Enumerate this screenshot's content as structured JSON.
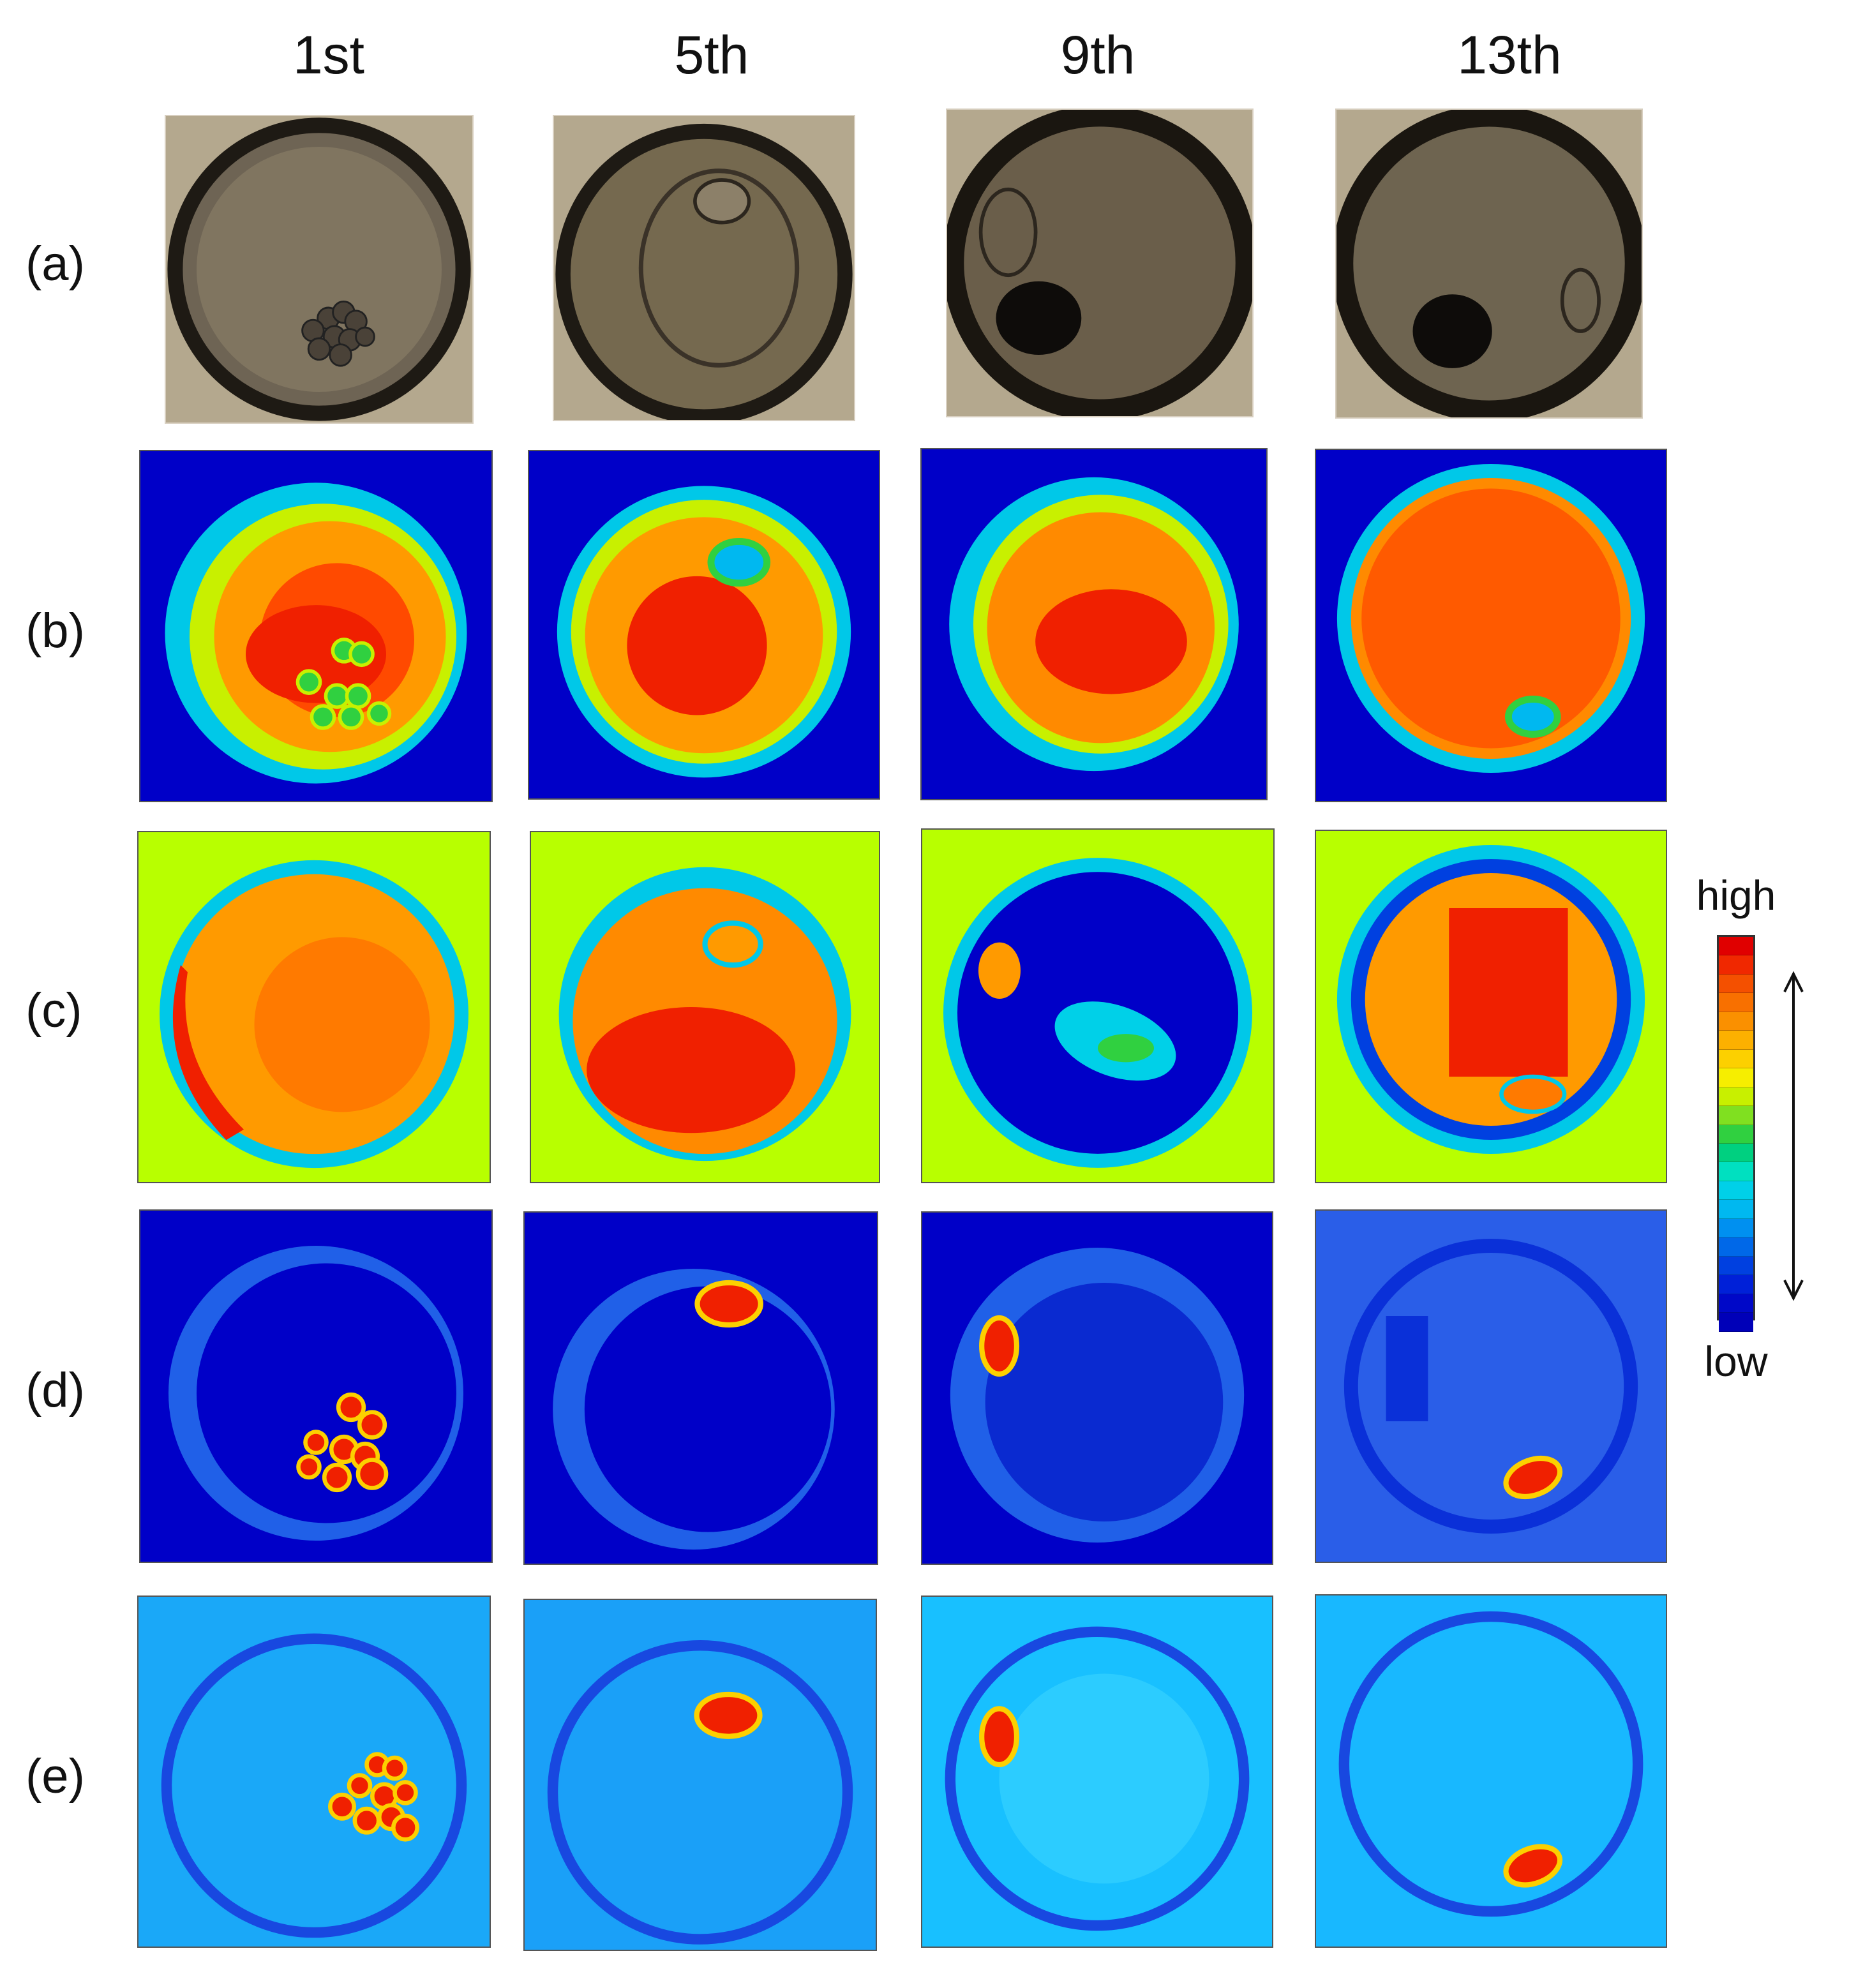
{
  "columns": [
    "1st",
    "5th",
    "9th",
    "13th"
  ],
  "rows": [
    "(a)",
    "(b)",
    "(c)",
    "(d)",
    "(e)"
  ],
  "colorbar": {
    "high_label": "high",
    "low_label": "low",
    "colors": [
      "#e00000",
      "#f02800",
      "#f45000",
      "#f87000",
      "#fa9000",
      "#fcb000",
      "#fcd000",
      "#f6ee00",
      "#c8f000",
      "#80e020",
      "#30d040",
      "#00d080",
      "#00e0c0",
      "#00d0e8",
      "#00b8f0",
      "#0090f0",
      "#0068e8",
      "#0040e0",
      "#0020d8",
      "#0008c8",
      "#0000b8"
    ]
  },
  "panel_colors": {
    "photo_bg": "#8a7d6a",
    "photo_ring": "#2a241c",
    "deep_blue": "#0000c8",
    "light_blue": "#2a7ff0",
    "cyan_bg": "#1ab0ff",
    "yellow_green": "#b8ff00",
    "red": "#e00000",
    "orange": "#ff6a00"
  }
}
